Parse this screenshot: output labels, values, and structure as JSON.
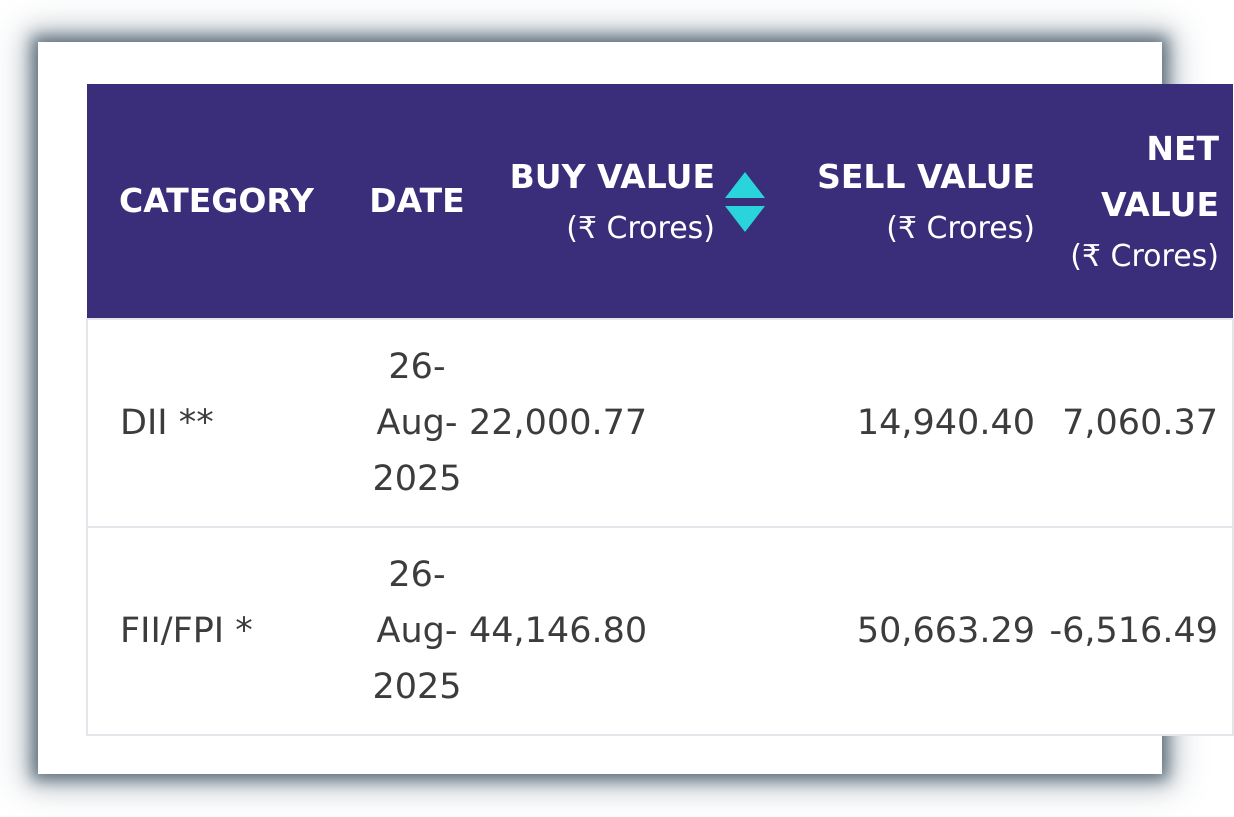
{
  "colors": {
    "header_bg": "#3a2d7a",
    "header_text": "#ffffff",
    "sort_icon": "#2ad4dc",
    "row_text": "#3c3c3c"
  },
  "table": {
    "headers": {
      "category": "CATEGORY",
      "date": "DATE",
      "buy_value": "BUY VALUE",
      "buy_unit": "(₹ Crores)",
      "sell_value": "SELL VALUE",
      "sell_unit": "(₹ Crores)",
      "net_value": "NET VALUE",
      "net_unit": "(₹ Crores)"
    },
    "rows": [
      {
        "category": "DII **",
        "date": "26-Aug-2025",
        "buy": "22,000.77",
        "sell": "14,940.40",
        "net": "7,060.37"
      },
      {
        "category": "FII/FPI *",
        "date": "26-Aug-2025",
        "buy": "44,146.80",
        "sell": "50,663.29",
        "net": "-6,516.49"
      }
    ]
  }
}
